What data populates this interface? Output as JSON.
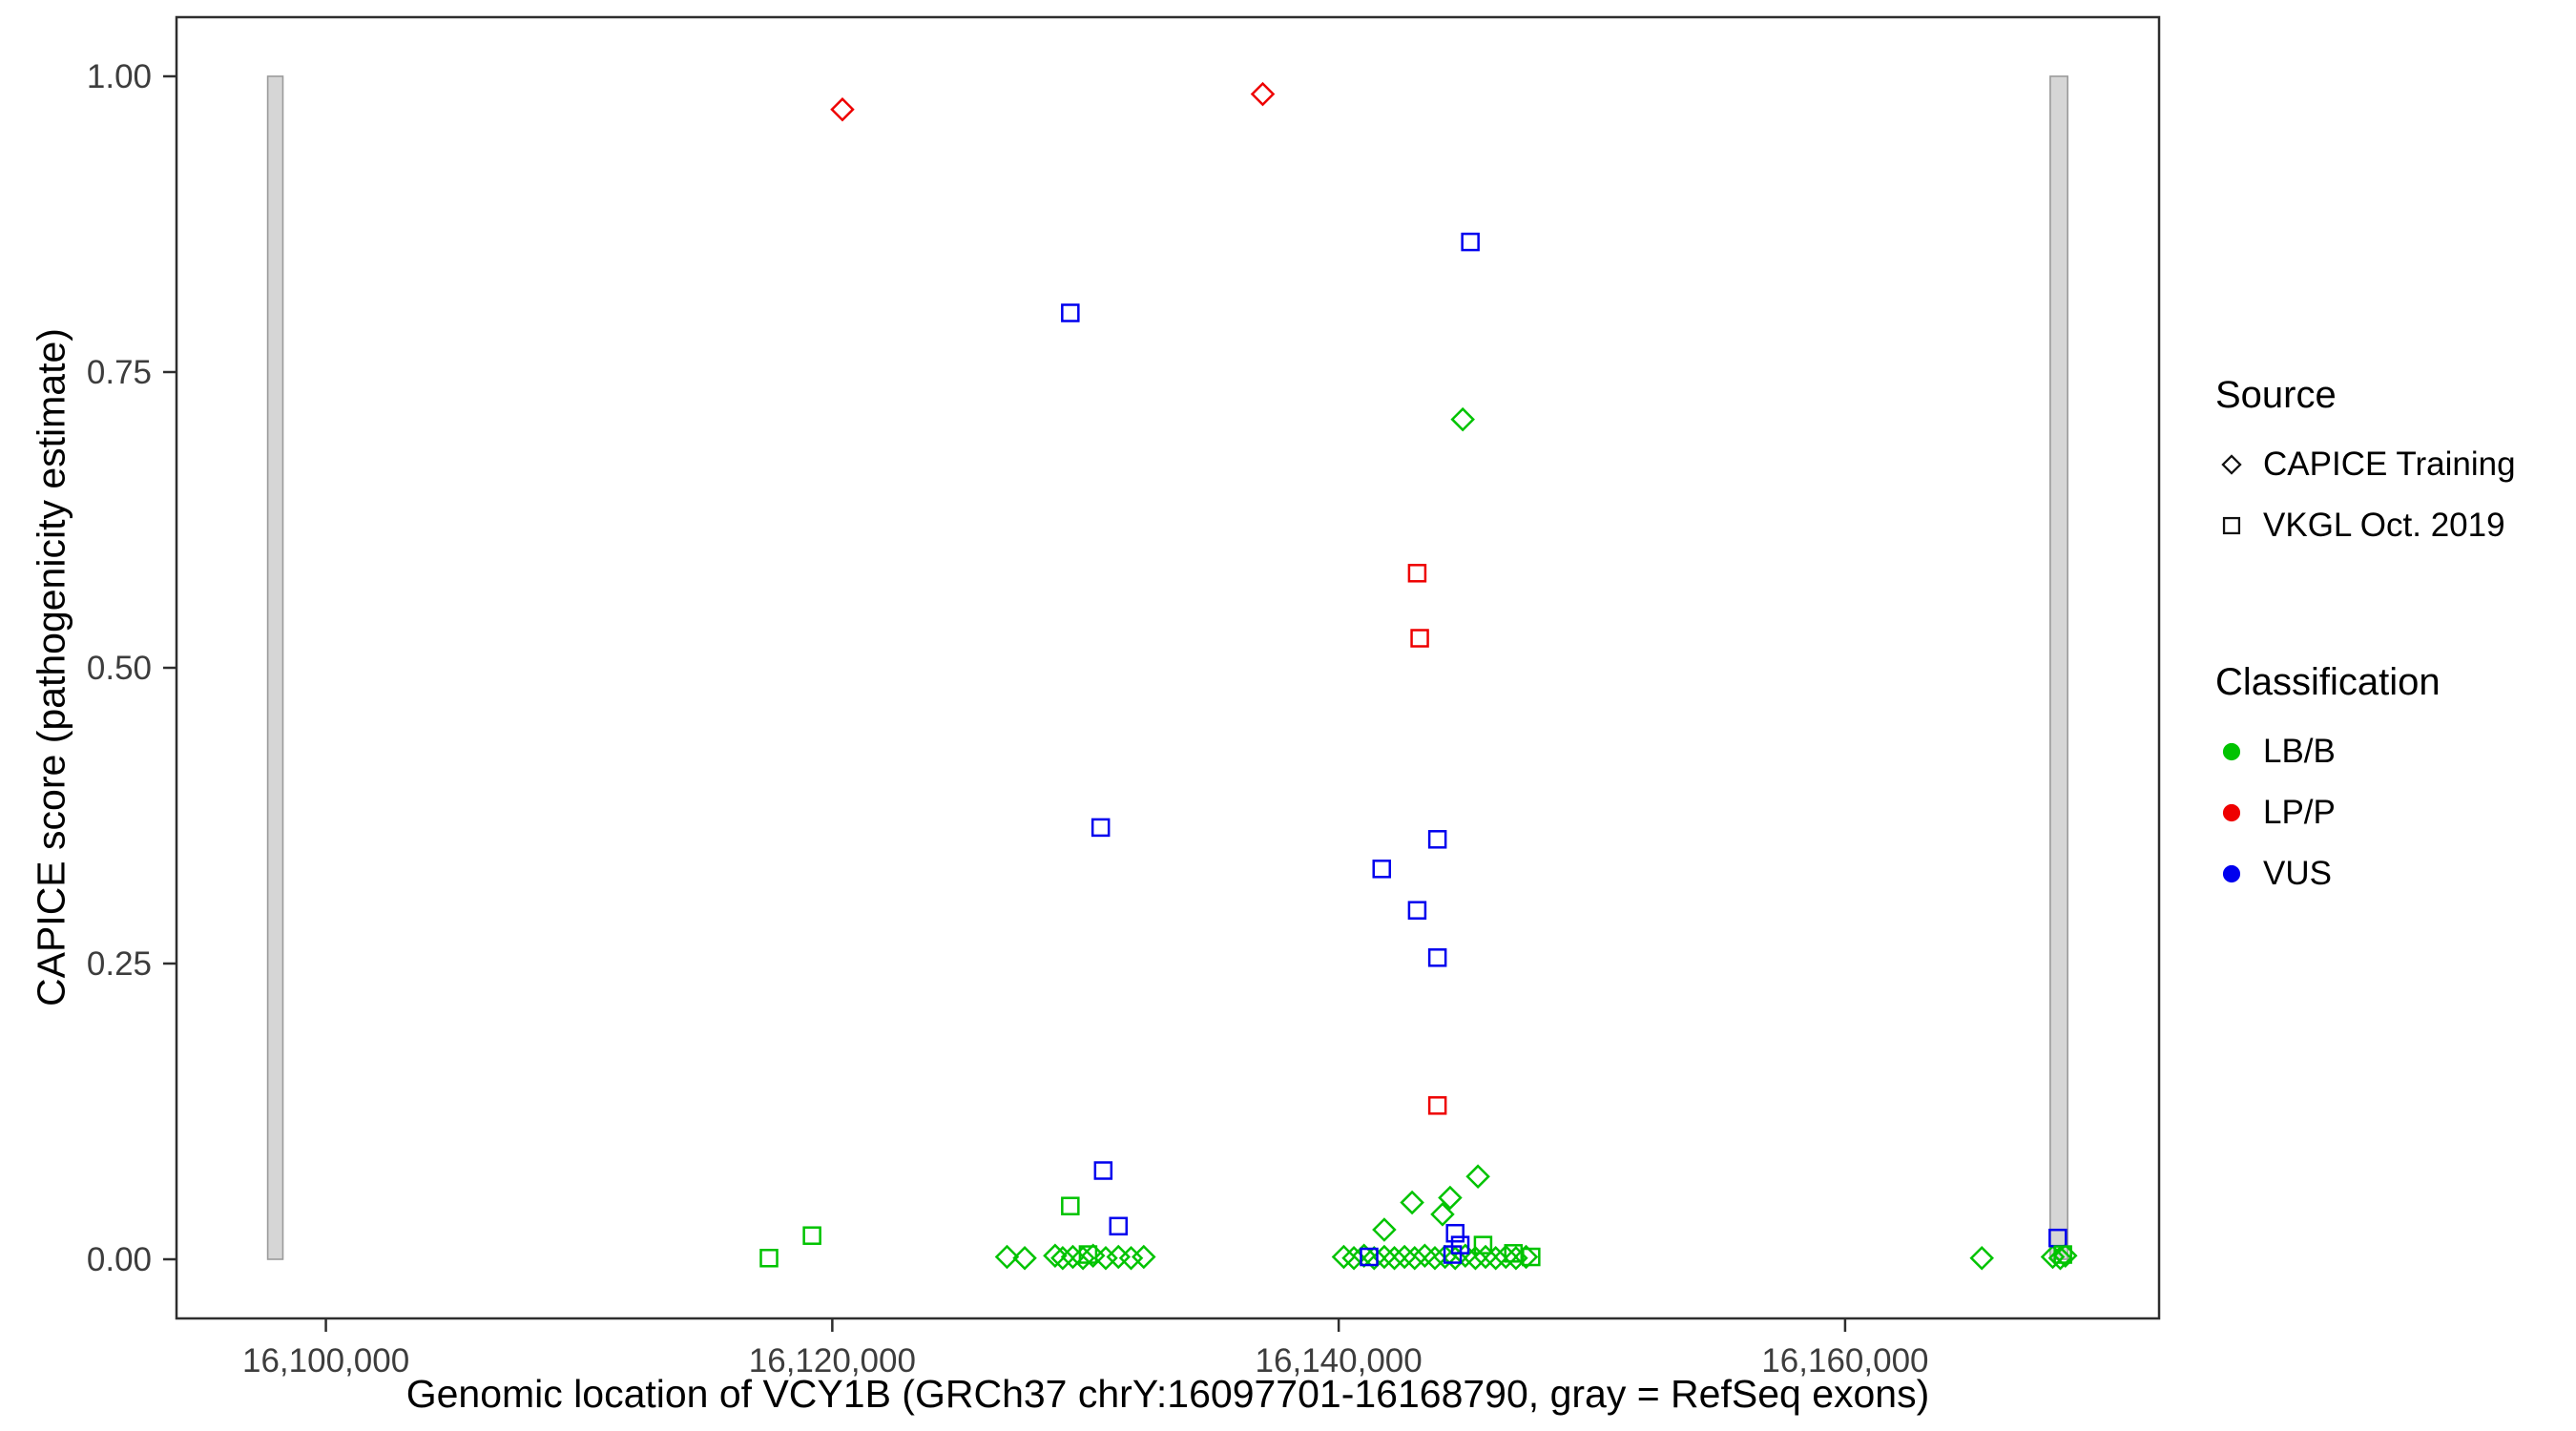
{
  "figure": {
    "background": "#ffffff"
  },
  "chart_data": {
    "type": "scatter",
    "title": "",
    "xlabel": "Genomic location of VCY1B (GRCh37 chrY:16097701-16168790, gray = RefSeq exons)",
    "ylabel": "CAPICE score (pathogenicity estimate)",
    "xlim": [
      16094100,
      16172400
    ],
    "ylim": [
      -0.05,
      1.05
    ],
    "grid": false,
    "legend_position": "right",
    "x_ticks": [
      {
        "value": 16100000,
        "label": "16,100,000"
      },
      {
        "value": 16120000,
        "label": "16,120,000"
      },
      {
        "value": 16140000,
        "label": "16,140,000"
      },
      {
        "value": 16160000,
        "label": "16,160,000"
      }
    ],
    "y_ticks": [
      {
        "value": 0.0,
        "label": "0.00"
      },
      {
        "value": 0.25,
        "label": "0.25"
      },
      {
        "value": 0.5,
        "label": "0.50"
      },
      {
        "value": 0.75,
        "label": "0.75"
      },
      {
        "value": 1.0,
        "label": "1.00"
      }
    ],
    "exon_color": "#d6d6d6",
    "exon_stroke": "#9b9b9b",
    "exon_regions": [
      {
        "start": 16097701,
        "end": 16098300
      },
      {
        "start": 16168100,
        "end": 16168790
      }
    ],
    "colors": {
      "LB/B": "#00C300",
      "LP/P": "#EE0000",
      "VUS": "#0000EE"
    },
    "series": [
      {
        "name": "CAPICE Training / LP/P",
        "source": "CAPICE Training",
        "classification": "LP/P",
        "marker": "diamond",
        "color": "#EE0000",
        "points": [
          [
            16120400,
            0.972
          ],
          [
            16137000,
            0.985
          ]
        ]
      },
      {
        "name": "CAPICE Training / LB/B",
        "source": "CAPICE Training",
        "classification": "LB/B",
        "marker": "diamond",
        "color": "#00C300",
        "points": [
          [
            16144900,
            0.71
          ],
          [
            16145500,
            0.07
          ],
          [
            16144400,
            0.052
          ],
          [
            16144100,
            0.038
          ],
          [
            16142900,
            0.048
          ],
          [
            16141800,
            0.025
          ],
          [
            16126900,
            0.002
          ],
          [
            16127600,
            0.001
          ],
          [
            16128800,
            0.003
          ],
          [
            16129100,
            0.001
          ],
          [
            16129500,
            0.002
          ],
          [
            16129900,
            0.001
          ],
          [
            16130300,
            0.003
          ],
          [
            16130800,
            0.001
          ],
          [
            16131300,
            0.002
          ],
          [
            16131800,
            0.001
          ],
          [
            16132300,
            0.002
          ],
          [
            16140200,
            0.002
          ],
          [
            16140600,
            0.001
          ],
          [
            16141000,
            0.003
          ],
          [
            16141400,
            0.001
          ],
          [
            16141800,
            0.002
          ],
          [
            16142200,
            0.001
          ],
          [
            16142600,
            0.002
          ],
          [
            16143000,
            0.001
          ],
          [
            16143400,
            0.003
          ],
          [
            16143800,
            0.001
          ],
          [
            16144200,
            0.002
          ],
          [
            16144600,
            0.001
          ],
          [
            16145000,
            0.003
          ],
          [
            16145400,
            0.001
          ],
          [
            16145800,
            0.002
          ],
          [
            16146200,
            0.001
          ],
          [
            16146600,
            0.002
          ],
          [
            16147000,
            0.001
          ],
          [
            16147400,
            0.002
          ],
          [
            16165400,
            0.001
          ],
          [
            16168200,
            0.002
          ],
          [
            16168500,
            0.001
          ],
          [
            16168700,
            0.003
          ]
        ]
      },
      {
        "name": "VKGL Oct. 2019 / LP/P",
        "source": "VKGL Oct. 2019",
        "classification": "LP/P",
        "marker": "square",
        "color": "#EE0000",
        "points": [
          [
            16143100,
            0.58
          ],
          [
            16143200,
            0.525
          ],
          [
            16143900,
            0.13
          ]
        ]
      },
      {
        "name": "VKGL Oct. 2019 / VUS",
        "source": "VKGL Oct. 2019",
        "classification": "VUS",
        "marker": "square",
        "color": "#0000EE",
        "points": [
          [
            16129400,
            0.8
          ],
          [
            16145200,
            0.86
          ],
          [
            16130600,
            0.365
          ],
          [
            16141700,
            0.33
          ],
          [
            16143900,
            0.355
          ],
          [
            16143100,
            0.295
          ],
          [
            16143900,
            0.255
          ],
          [
            16130700,
            0.075
          ],
          [
            16131300,
            0.028
          ],
          [
            16144600,
            0.022
          ],
          [
            16144800,
            0.012
          ],
          [
            16144500,
            0.004
          ],
          [
            16141200,
            0.002
          ],
          [
            16168400,
            0.018
          ]
        ]
      },
      {
        "name": "VKGL Oct. 2019 / LB/B",
        "source": "VKGL Oct. 2019",
        "classification": "LB/B",
        "marker": "square",
        "color": "#00C300",
        "points": [
          [
            16117500,
            0.001
          ],
          [
            16119200,
            0.02
          ],
          [
            16129400,
            0.045
          ],
          [
            16130100,
            0.004
          ],
          [
            16145700,
            0.012
          ],
          [
            16146900,
            0.005
          ],
          [
            16147600,
            0.002
          ],
          [
            16168600,
            0.004
          ]
        ]
      }
    ],
    "legend": {
      "source": {
        "title": "Source",
        "items": [
          {
            "label": "CAPICE Training",
            "marker": "diamond"
          },
          {
            "label": "VKGL Oct. 2019",
            "marker": "square"
          }
        ]
      },
      "classification": {
        "title": "Classification",
        "items": [
          {
            "label": "LB/B",
            "color": "#00C300"
          },
          {
            "label": "LP/P",
            "color": "#EE0000"
          },
          {
            "label": "VUS",
            "color": "#0000EE"
          }
        ]
      }
    }
  }
}
